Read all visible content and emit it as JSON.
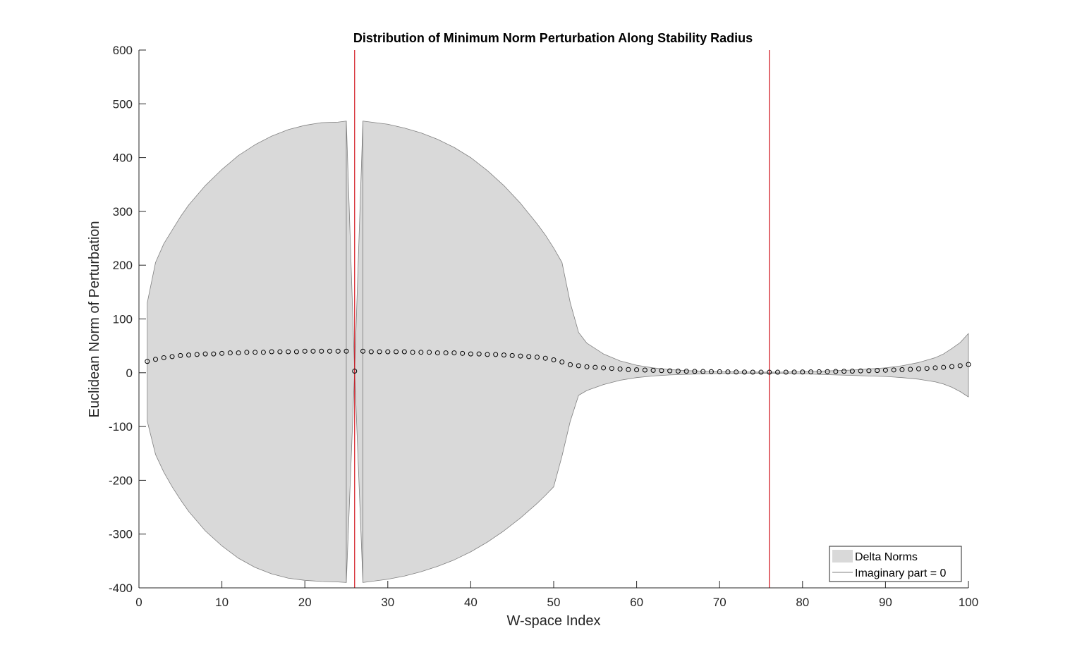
{
  "chart_data": {
    "type": "area",
    "title": "Distribution of Minimum Norm Perturbation Along Stability Radius",
    "xlabel": "W-space Index",
    "ylabel": "Euclidean Norm of Perturbation",
    "xlim": [
      0,
      100
    ],
    "ylim": [
      -400,
      600
    ],
    "xticks": [
      0,
      10,
      20,
      30,
      40,
      50,
      60,
      70,
      80,
      90,
      100
    ],
    "yticks": [
      -400,
      -300,
      -200,
      -100,
      0,
      100,
      200,
      300,
      400,
      500,
      600
    ],
    "grid": false,
    "legend": {
      "location": "bottom-right",
      "entries": [
        "Delta Norms",
        "Imaginary part = 0"
      ]
    },
    "colors": {
      "band_fill": "#d9d9d9",
      "band_edge": "#808080",
      "vertical_lines": "#d0101a",
      "markers": "#000000",
      "axes": "#262626"
    },
    "band": {
      "name": "Delta Norms",
      "segments": [
        {
          "x": [
            1,
            2,
            3,
            4,
            5,
            6,
            8,
            10,
            12,
            14,
            16,
            18,
            20,
            22,
            24,
            25
          ],
          "upper": [
            130,
            205,
            240,
            265,
            290,
            312,
            348,
            378,
            404,
            424,
            440,
            452,
            460,
            465,
            466,
            468
          ],
          "lower": [
            -90,
            -152,
            -185,
            -212,
            -236,
            -258,
            -294,
            -322,
            -345,
            -362,
            -374,
            -382,
            -386,
            -388,
            -389,
            -390
          ]
        },
        {
          "x": [
            25,
            26,
            27
          ],
          "upper": [
            468,
            3,
            468
          ],
          "lower": [
            -390,
            3,
            -390
          ]
        },
        {
          "x": [
            27,
            28,
            30,
            32,
            34,
            36,
            38,
            40,
            42,
            44,
            46,
            48,
            49,
            50,
            51,
            52,
            53,
            54,
            56,
            58,
            60,
            62,
            64,
            66,
            68,
            70,
            72,
            74,
            76,
            78,
            80,
            82,
            84,
            86,
            88,
            90,
            92,
            94,
            96,
            97,
            98,
            99,
            100
          ],
          "upper": [
            468,
            466,
            462,
            455,
            446,
            434,
            419,
            400,
            376,
            348,
            315,
            277,
            256,
            232,
            205,
            130,
            75,
            55,
            35,
            22,
            14,
            9,
            6,
            4,
            3,
            2,
            1.5,
            1.2,
            1,
            1.2,
            2,
            3,
            4,
            5,
            7,
            9,
            13,
            19,
            28,
            35,
            45,
            56,
            73
          ],
          "lower": [
            -390,
            -388,
            -384,
            -378,
            -370,
            -360,
            -348,
            -333,
            -315,
            -294,
            -270,
            -243,
            -228,
            -212,
            -155,
            -90,
            -42,
            -33,
            -22,
            -14,
            -9,
            -6,
            -4,
            -3,
            -2,
            -1.5,
            -1.2,
            -1,
            -1,
            -1.2,
            -2,
            -3,
            -4,
            -5,
            -6,
            -7,
            -9,
            -12,
            -17,
            -21,
            -27,
            -35,
            -45
          ]
        }
      ]
    },
    "reference_lines": {
      "name": "Imaginary part = 0",
      "x": [
        26,
        76
      ]
    },
    "markers": {
      "x": [
        1,
        2,
        3,
        4,
        5,
        6,
        7,
        8,
        9,
        10,
        11,
        12,
        13,
        14,
        15,
        16,
        17,
        18,
        19,
        20,
        21,
        22,
        23,
        24,
        25,
        26,
        27,
        28,
        29,
        30,
        31,
        32,
        33,
        34,
        35,
        36,
        37,
        38,
        39,
        40,
        41,
        42,
        43,
        44,
        45,
        46,
        47,
        48,
        49,
        50,
        51,
        52,
        53,
        54,
        55,
        56,
        57,
        58,
        59,
        60,
        61,
        62,
        63,
        64,
        65,
        66,
        67,
        68,
        69,
        70,
        71,
        72,
        73,
        74,
        75,
        76,
        77,
        78,
        79,
        80,
        81,
        82,
        83,
        84,
        85,
        86,
        87,
        88,
        89,
        90,
        91,
        92,
        93,
        94,
        95,
        96,
        97,
        98,
        99,
        100
      ],
      "y": [
        21,
        25,
        28,
        30,
        32,
        33,
        34,
        35,
        35,
        36,
        37,
        37,
        38,
        38,
        38,
        39,
        39,
        39,
        39,
        40,
        40,
        40,
        40,
        40,
        40,
        3,
        40,
        39,
        39,
        39,
        39,
        39,
        38,
        38,
        38,
        37,
        37,
        37,
        36,
        35,
        35,
        34,
        34,
        33,
        32,
        31,
        30,
        29,
        27,
        24,
        20,
        15,
        13,
        11,
        10,
        9,
        8,
        7,
        6,
        5.5,
        5,
        4.5,
        4,
        3.5,
        3,
        2.8,
        2.5,
        2.3,
        2,
        1.8,
        1.5,
        1.3,
        1.2,
        1.1,
        1,
        1,
        1,
        1.1,
        1.2,
        1.4,
        1.6,
        1.8,
        2.1,
        2.4,
        2.7,
        3,
        3.4,
        3.8,
        4.2,
        4.7,
        5.2,
        5.8,
        6.5,
        7.2,
        8,
        9,
        10,
        11.5,
        13,
        15.5
      ]
    }
  }
}
